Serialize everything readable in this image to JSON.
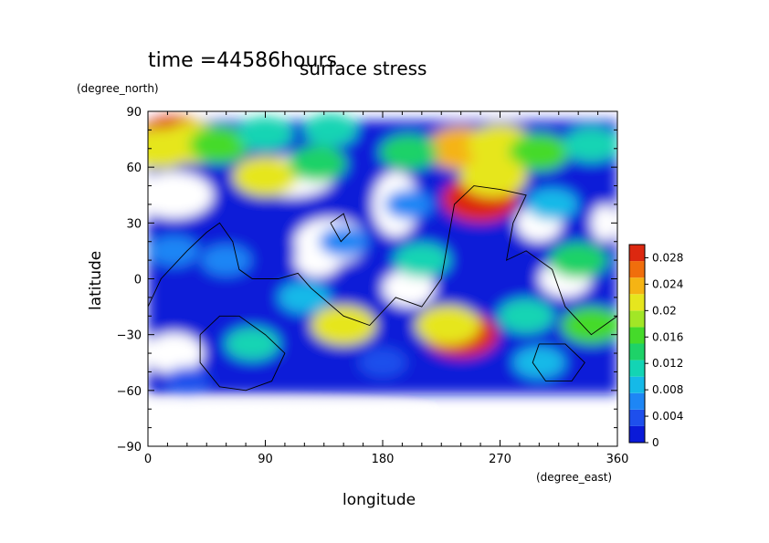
{
  "header": {
    "time_label": "time =44586hours",
    "title": "surface stress"
  },
  "chart_data": {
    "type": "heatmap",
    "title": "surface stress",
    "xlabel": "longitude",
    "ylabel": "latitude",
    "xunits": "(degree_east)",
    "yunits": "(degree_north)",
    "xlim": [
      0,
      360
    ],
    "ylim": [
      -90,
      90
    ],
    "xticks": [
      0,
      90,
      180,
      270,
      360
    ],
    "yticks": [
      -90,
      -60,
      -30,
      0,
      30,
      60,
      90
    ],
    "colorbar": {
      "range": [
        0,
        0.03
      ],
      "ticks": [
        0,
        0.004,
        0.008,
        0.012,
        0.016,
        0.02,
        0.024,
        0.028
      ],
      "tick_labels": [
        "0",
        "0.004",
        "0.008",
        "0.012",
        "0.016",
        "0.02",
        "0.024",
        "0.028"
      ],
      "colors": [
        "#ffffff",
        "#0a1ad8",
        "#1e4fec",
        "#1e86f5",
        "#15b9e8",
        "#13d4b4",
        "#1ed268",
        "#45da2a",
        "#a2e626",
        "#e6e61e",
        "#f5b414",
        "#f06e0c",
        "#dc2810"
      ]
    },
    "regions": [
      {
        "lon": 20,
        "lat": 75,
        "value": 0.03
      },
      {
        "lon": 35,
        "lat": 73,
        "value": 0.022
      },
      {
        "lon": 10,
        "lat": 70,
        "value": 0.02
      },
      {
        "lon": 55,
        "lat": 72,
        "value": 0.016
      },
      {
        "lon": 90,
        "lat": 78,
        "value": 0.012
      },
      {
        "lon": 140,
        "lat": 80,
        "value": 0.01
      },
      {
        "lon": 240,
        "lat": 70,
        "value": 0.024
      },
      {
        "lon": 270,
        "lat": 72,
        "value": 0.02
      },
      {
        "lon": 300,
        "lat": 68,
        "value": 0.016
      },
      {
        "lon": 340,
        "lat": 72,
        "value": 0.012
      },
      {
        "lon": 200,
        "lat": 68,
        "value": 0.014
      },
      {
        "lon": 255,
        "lat": 43,
        "value": 0.03
      },
      {
        "lon": 265,
        "lat": 55,
        "value": 0.022
      },
      {
        "lon": 90,
        "lat": 55,
        "value": 0.02
      },
      {
        "lon": 130,
        "lat": 62,
        "value": 0.014
      },
      {
        "lon": 310,
        "lat": 40,
        "value": 0.008
      },
      {
        "lon": 330,
        "lat": 10,
        "value": 0.014
      },
      {
        "lon": 340,
        "lat": -25,
        "value": 0.016
      },
      {
        "lon": 240,
        "lat": -30,
        "value": 0.028
      },
      {
        "lon": 230,
        "lat": -25,
        "value": 0.02
      },
      {
        "lon": 150,
        "lat": -25,
        "value": 0.02
      },
      {
        "lon": 210,
        "lat": 10,
        "value": 0.012
      },
      {
        "lon": 120,
        "lat": -10,
        "value": 0.008
      },
      {
        "lon": 60,
        "lat": 10,
        "value": 0.006
      },
      {
        "lon": 290,
        "lat": -20,
        "value": 0.012
      },
      {
        "lon": 80,
        "lat": -35,
        "value": 0.01
      },
      {
        "lon": 300,
        "lat": -45,
        "value": 0.008
      },
      {
        "lon": 180,
        "lat": -45,
        "value": 0.004
      },
      {
        "lon": 30,
        "lat": -55,
        "value": 0.003
      },
      {
        "lon": 150,
        "lat": 20,
        "value": 0.006
      },
      {
        "lon": 200,
        "lat": 40,
        "value": 0.005
      },
      {
        "lon": 20,
        "lat": 15,
        "value": 0.006
      }
    ],
    "grid": false
  }
}
